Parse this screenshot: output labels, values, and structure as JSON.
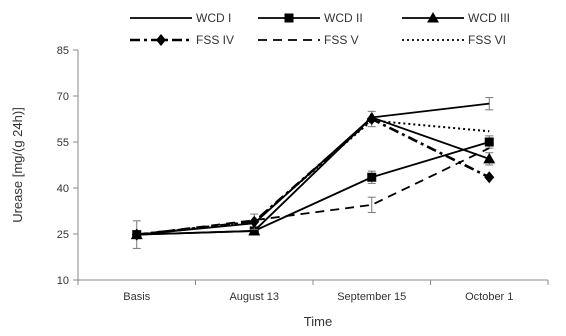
{
  "chart_data": {
    "type": "line",
    "title": "",
    "xlabel": "Time",
    "ylabel": "Urease [mg/(g 24h)]",
    "ylim": [
      10,
      85
    ],
    "yticks": [
      10,
      25,
      40,
      55,
      70,
      85
    ],
    "categories": [
      "Basis",
      "August 13",
      "September 15",
      "October 1"
    ],
    "grid": false,
    "legend_position": "top",
    "series": [
      {
        "name": "WCD I",
        "values": [
          24.8,
          28.5,
          63.0,
          67.5
        ],
        "errors": [
          0,
          0,
          0,
          2.0
        ],
        "style": "solid",
        "marker": "none",
        "color": "#000000"
      },
      {
        "name": "WCD II",
        "values": [
          24.8,
          26.0,
          43.5,
          55.0
        ],
        "errors": [
          0,
          0,
          2.0,
          2.0
        ],
        "style": "solid",
        "marker": "square",
        "color": "#000000"
      },
      {
        "name": "WCD III",
        "values": [
          24.8,
          26.0,
          63.0,
          49.5
        ],
        "errors": [
          0,
          0,
          0,
          2.0
        ],
        "style": "solid",
        "marker": "triangle",
        "color": "#000000"
      },
      {
        "name": "FSS IV",
        "values": [
          24.8,
          29.0,
          62.5,
          43.5
        ],
        "errors": [
          4.5,
          2.5,
          2.5,
          0
        ],
        "style": "dashdot",
        "marker": "diamond",
        "color": "#000000"
      },
      {
        "name": "FSS V",
        "values": [
          24.8,
          29.5,
          34.5,
          53.0
        ],
        "errors": [
          0,
          0,
          2.5,
          0
        ],
        "style": "dashed",
        "marker": "none",
        "color": "#000000"
      },
      {
        "name": "FSS VI",
        "values": [
          24.8,
          29.0,
          62.0,
          58.5
        ],
        "errors": [
          0,
          0,
          0,
          0
        ],
        "style": "dotted",
        "marker": "none",
        "color": "#000000"
      }
    ]
  }
}
